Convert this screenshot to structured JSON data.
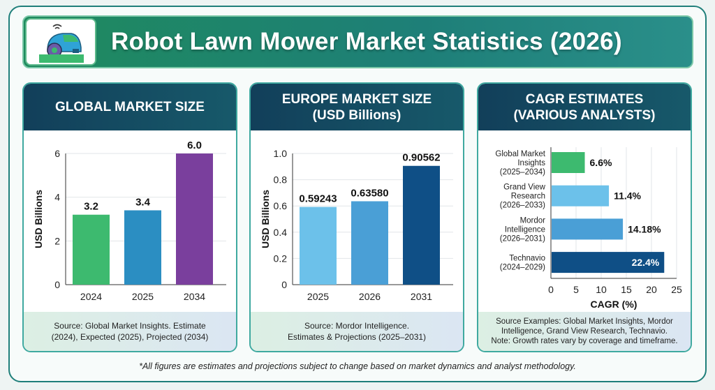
{
  "header": {
    "title": "Robot Lawn Mower Market Statistics (2026)",
    "logo_icon": "robot-lawn-mower-icon"
  },
  "panels": [
    {
      "title_lines": [
        "GLOBAL MARKET SIZE"
      ],
      "footer_lines": [
        "Source: Global Market Insights. Estimate",
        "(2024), Expected (2025), Projected (2034)"
      ]
    },
    {
      "title_lines": [
        "EUROPE MARKET SIZE",
        "(USD Billions)"
      ],
      "footer_lines": [
        "Source: Mordor Intelligence.",
        "Estimates & Projections (2025–2031)"
      ]
    },
    {
      "title_lines": [
        "CAGR ESTIMATES",
        "(VARIOUS ANALYSTS)"
      ],
      "footer_lines": [
        "Source Examples: Global Market Insights, Mordor",
        "Intelligence, Grand View Research, Technavio.",
        "Note: Growth rates vary by coverage and timeframe."
      ]
    }
  ],
  "footnote": "*All figures are estimates and projections subject to change based on market dynamics and analyst methodology.",
  "chart_data": [
    {
      "type": "bar",
      "title": "GLOBAL MARKET SIZE",
      "categories": [
        "2024",
        "2025",
        "2034"
      ],
      "values": [
        3.2,
        3.4,
        6.0
      ],
      "labels": [
        "3.2",
        "3.4",
        "6.0"
      ],
      "ylabel": "USD Billions",
      "xlabel": "",
      "ylim": [
        0,
        6
      ],
      "yticks": [
        "0",
        "2",
        "4",
        "6"
      ],
      "colors": [
        "#3dba6f",
        "#2b8ec2",
        "#7a3f9d"
      ],
      "grid": true
    },
    {
      "type": "bar",
      "title": "EUROPE MARKET SIZE (USD Billions)",
      "categories": [
        "2025",
        "2026",
        "2031"
      ],
      "values": [
        0.59243,
        0.6358,
        0.90562
      ],
      "labels": [
        "0.59243",
        "0.63580",
        "0.90562"
      ],
      "ylabel": "USD Billions",
      "xlabel": "",
      "ylim": [
        0,
        1.0
      ],
      "yticks": [
        "0",
        "0.2",
        "0.4",
        "0.6",
        "0.8",
        "1.0"
      ],
      "colors": [
        "#6cc1ea",
        "#4a9fd6",
        "#0f4f86"
      ],
      "grid": true
    },
    {
      "type": "bar",
      "orientation": "horizontal",
      "title": "CAGR ESTIMATES (VARIOUS ANALYSTS)",
      "categories": [
        [
          "Global Market",
          "Insights",
          "(2025–2034)"
        ],
        [
          "Grand View",
          "Research",
          "(2026–2033)"
        ],
        [
          "Mordor",
          "Intelligence",
          "(2026–2031)"
        ],
        [
          "Technavio",
          "(2024–2029)"
        ]
      ],
      "values": [
        6.6,
        11.4,
        14.18,
        22.4
      ],
      "labels": [
        "6.6%",
        "11.4%",
        "14.18%",
        "22.4%"
      ],
      "xlabel": "CAGR (%)",
      "ylabel": "",
      "xlim": [
        0,
        25
      ],
      "xticks": [
        "0",
        "5",
        "10",
        "15",
        "20",
        "25"
      ],
      "colors": [
        "#3dba6f",
        "#6cc1ea",
        "#4a9fd6",
        "#0f4f86"
      ],
      "grid": true
    }
  ]
}
